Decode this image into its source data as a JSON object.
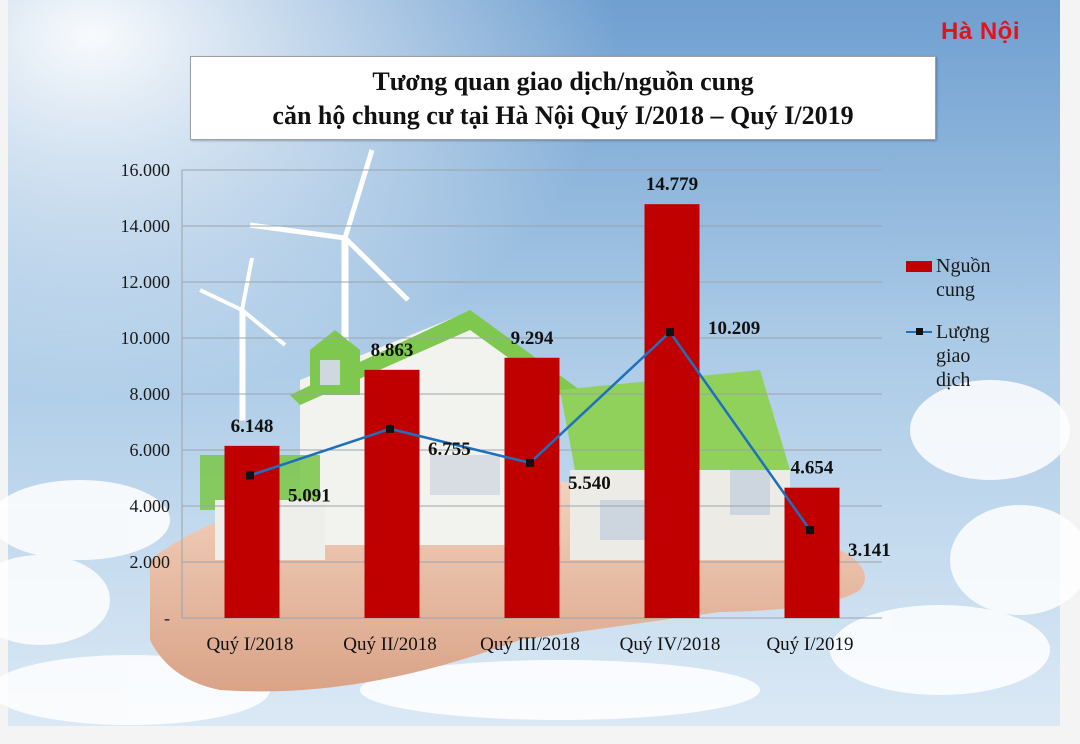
{
  "region_label": "Hà Nội",
  "title_lines": [
    "Tương quan giao dịch/nguồn cung",
    "căn hộ chung cư tại Hà Nội Quý I/2018 – Quý I/2019"
  ],
  "colors": {
    "bar": "#c00000",
    "line": "#1f6fbf",
    "marker": "#111111",
    "region": "#e0141a"
  },
  "chart_data": {
    "type": "bar",
    "categories": [
      "Quý I/2018",
      "Quý II/2018",
      "Quý III/2018",
      "Quý IV/2018",
      "Quý I/2019"
    ],
    "series": [
      {
        "name": "Nguồn cung",
        "type": "bar",
        "values": [
          6148,
          8863,
          9294,
          14779,
          4654
        ],
        "labels": [
          "6.148",
          "8.863",
          "9.294",
          "14.779",
          "4.654"
        ]
      },
      {
        "name": "Lượng giao dịch",
        "type": "line",
        "values": [
          5091,
          6755,
          5540,
          10209,
          3141
        ],
        "labels": [
          "5.091",
          "6.755",
          "5.540",
          "10.209",
          "3.141"
        ]
      }
    ],
    "ylim": [
      0,
      16000
    ],
    "yticks": [
      0,
      2000,
      4000,
      6000,
      8000,
      10000,
      12000,
      14000,
      16000
    ],
    "ytick_labels": [
      "-",
      "2.000",
      "4.000",
      "6.000",
      "8.000",
      "10.000",
      "12.000",
      "14.000",
      "16.000"
    ],
    "grid": true,
    "legend_position": "right"
  },
  "legend": [
    {
      "label": "Nguồn\ncung",
      "kind": "bar"
    },
    {
      "label": "Lượng\ngiao\ndịch",
      "kind": "line"
    }
  ]
}
